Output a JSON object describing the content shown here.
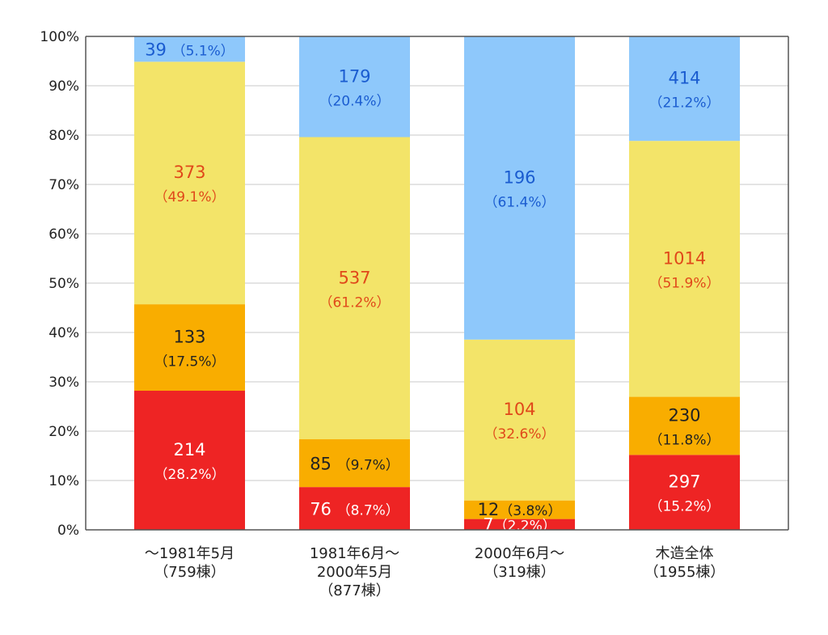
{
  "chart_data": {
    "type": "bar",
    "stacked": true,
    "normalized": true,
    "ylim": [
      0,
      100
    ],
    "yticks": [
      "0%",
      "10%",
      "20%",
      "30%",
      "40%",
      "50%",
      "60%",
      "70%",
      "80%",
      "90%",
      "100%"
    ],
    "grid": true,
    "categories": [
      [
        "～1981年5月",
        "（759棟）"
      ],
      [
        "1981年6月～",
        "2000年5月",
        "（877棟）"
      ],
      [
        "2000年6月～",
        "（319棟）"
      ],
      [
        "木造全体",
        "（1955棟）"
      ]
    ],
    "series": [
      {
        "color": "#ee2424",
        "label_color": "#ffffff",
        "pct_color": "#ffffff",
        "values": [
          214,
          76,
          7,
          297
        ],
        "percents": [
          28.2,
          8.7,
          2.2,
          15.2
        ],
        "labels": [
          "214",
          "76",
          "7",
          "297"
        ],
        "pct_labels": [
          "（28.2%）",
          "（8.7%）",
          "（2.2%）",
          "（15.2%）"
        ]
      },
      {
        "color": "#f9ad00",
        "label_color": "#222222",
        "pct_color": "#222222",
        "values": [
          133,
          85,
          12,
          230
        ],
        "percents": [
          17.5,
          9.7,
          3.8,
          11.8
        ],
        "labels": [
          "133",
          "85",
          "12",
          "230"
        ],
        "pct_labels": [
          "（17.5%）",
          "（9.7%）",
          "（3.8%）",
          "（11.8%）"
        ]
      },
      {
        "color": "#f3e469",
        "label_color": "#e0481a",
        "pct_color": "#e0481a",
        "values": [
          373,
          537,
          104,
          1014
        ],
        "percents": [
          49.1,
          61.2,
          32.6,
          51.9
        ],
        "labels": [
          "373",
          "537",
          "104",
          "1014"
        ],
        "pct_labels": [
          "（49.1%）",
          "（61.2%）",
          "（32.6%）",
          "（51.9%）"
        ]
      },
      {
        "color": "#8ec8fb",
        "label_color": "#1a5cd0",
        "pct_color": "#1a5cd0",
        "values": [
          39,
          179,
          196,
          414
        ],
        "percents": [
          5.1,
          20.4,
          61.4,
          21.2
        ],
        "labels": [
          "39",
          "179",
          "196",
          "414"
        ],
        "pct_labels": [
          "（5.1%）",
          "（20.4%）",
          "（61.4%）",
          "（21.2%）"
        ]
      }
    ]
  }
}
